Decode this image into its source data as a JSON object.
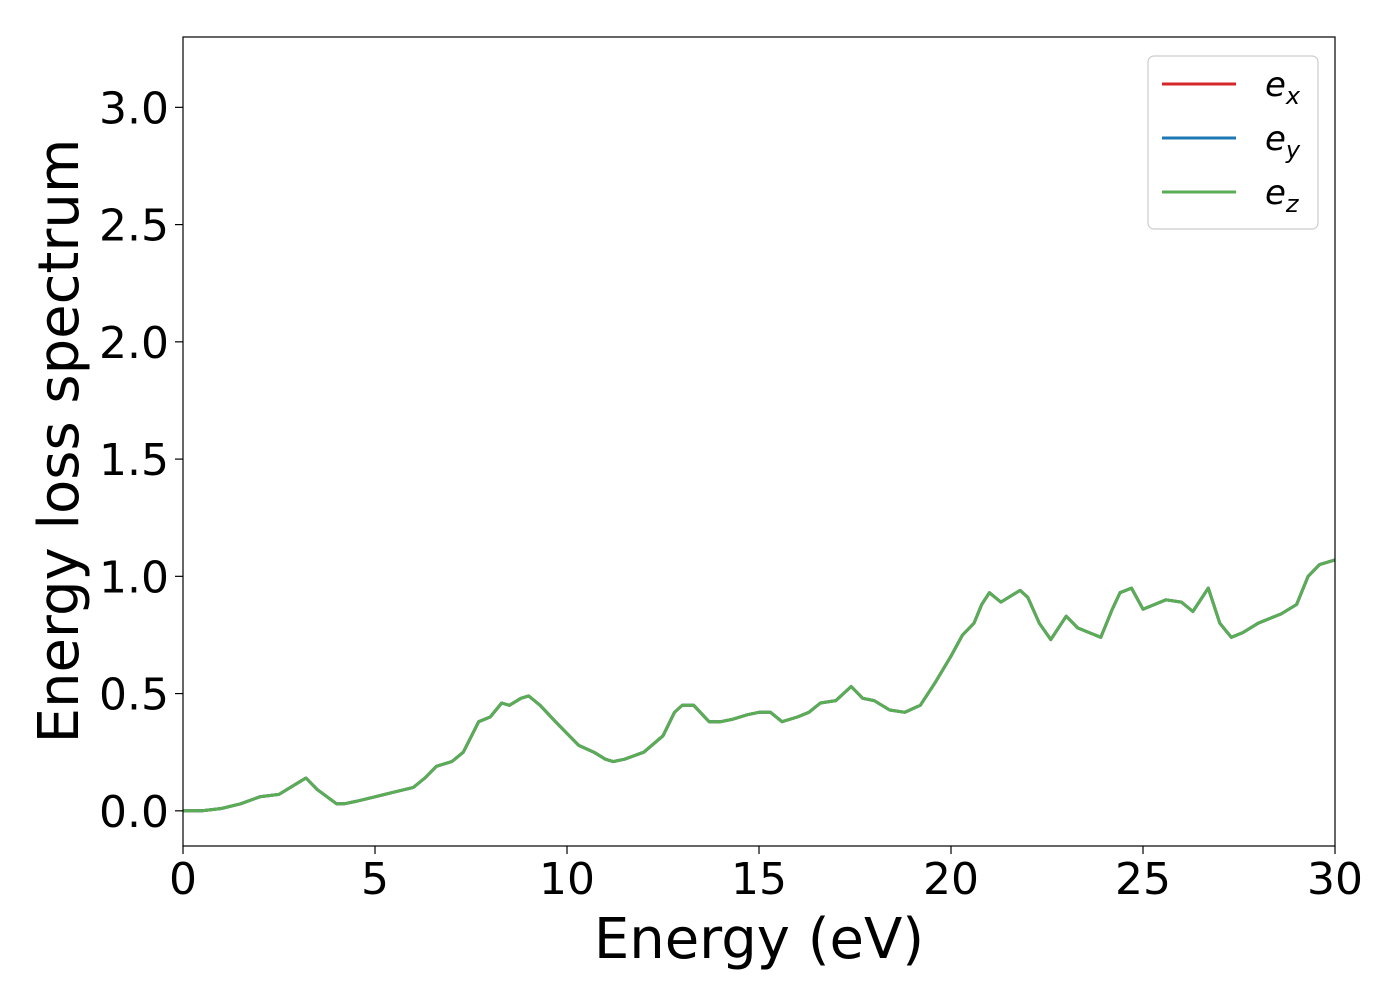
{
  "chart_data": {
    "type": "line",
    "title": "",
    "xlabel": "Energy (eV)",
    "ylabel": "Energy loss spectrum",
    "xlim": [
      0,
      30
    ],
    "ylim": [
      -0.15,
      3.3
    ],
    "xticks": [
      "0",
      "5",
      "10",
      "15",
      "20",
      "25",
      "30"
    ],
    "yticks": [
      "0.0",
      "0.5",
      "1.0",
      "1.5",
      "2.0",
      "2.5",
      "3.0"
    ],
    "grid": false,
    "legend_position": "top-right",
    "series": [
      {
        "name": "e",
        "subscript": "x",
        "color": "#d62728",
        "x": [
          0,
          0.5,
          1,
          1.5,
          2,
          2.5,
          3,
          3.2,
          3.5,
          4,
          4.2,
          4.5,
          5,
          5.5,
          6,
          6.3,
          6.6,
          7,
          7.3,
          7.7,
          8,
          8.3,
          8.5,
          8.8,
          9,
          9.3,
          9.7,
          10,
          10.3,
          10.7,
          11,
          11.2,
          11.5,
          12,
          12.5,
          12.8,
          13,
          13.3,
          13.7,
          14,
          14.3,
          14.7,
          15,
          15.3,
          15.6,
          16,
          16.3,
          16.6,
          17,
          17.4,
          17.7,
          18,
          18.4,
          18.8,
          19.2,
          19.6,
          20,
          20.3,
          20.6,
          20.8,
          21,
          21.3,
          21.5,
          21.8,
          22,
          22.3,
          22.6,
          23,
          23.3,
          23.6,
          23.9,
          24.2,
          24.4,
          24.7,
          25,
          25.3,
          25.6,
          26,
          26.3,
          26.7,
          27,
          27.3,
          27.6,
          28,
          28.3,
          28.6,
          29,
          29.3,
          29.6,
          30
        ],
        "y": [
          0,
          0,
          0.01,
          0.03,
          0.06,
          0.07,
          0.12,
          0.14,
          0.09,
          0.03,
          0.03,
          0.04,
          0.06,
          0.08,
          0.1,
          0.14,
          0.19,
          0.21,
          0.25,
          0.38,
          0.4,
          0.46,
          0.45,
          0.48,
          0.49,
          0.45,
          0.38,
          0.33,
          0.28,
          0.25,
          0.22,
          0.21,
          0.22,
          0.25,
          0.32,
          0.42,
          0.45,
          0.45,
          0.38,
          0.38,
          0.39,
          0.41,
          0.42,
          0.42,
          0.38,
          0.4,
          0.42,
          0.46,
          0.47,
          0.53,
          0.48,
          0.47,
          0.43,
          0.42,
          0.45,
          0.55,
          0.66,
          0.75,
          0.8,
          0.88,
          0.93,
          0.89,
          0.91,
          0.94,
          0.91,
          0.8,
          0.73,
          0.83,
          0.78,
          0.76,
          0.74,
          0.86,
          0.93,
          0.95,
          0.86,
          0.88,
          0.9,
          0.89,
          0.85,
          0.95,
          0.8,
          0.74,
          0.76,
          0.8,
          0.82,
          0.84,
          0.88,
          1.0,
          1.05,
          1.07
        ],
        "values_note": ""
      },
      {
        "name": "e",
        "subscript": "y",
        "color": "#1f77b4",
        "x": [
          0,
          0.5,
          1,
          1.5,
          2,
          2.5,
          3,
          3.2,
          3.5,
          4,
          4.2,
          4.5,
          5,
          5.5,
          6,
          6.3,
          6.6,
          7,
          7.3,
          7.7,
          8,
          8.3,
          8.5,
          8.8,
          9,
          9.3,
          9.7,
          10,
          10.3,
          10.7,
          11,
          11.2,
          11.5,
          12,
          12.5,
          12.8,
          13,
          13.3,
          13.7,
          14,
          14.3,
          14.7,
          15,
          15.3,
          15.6,
          16,
          16.3,
          16.6,
          17,
          17.4,
          17.7,
          18,
          18.4,
          18.8,
          19.2,
          19.6,
          20,
          20.3,
          20.6,
          20.8,
          21,
          21.3,
          21.5,
          21.8,
          22,
          22.3,
          22.6,
          23,
          23.3,
          23.6,
          23.9,
          24.2,
          24.4,
          24.7,
          25,
          25.3,
          25.6,
          26,
          26.3,
          26.7,
          27,
          27.3,
          27.6,
          28,
          28.3,
          28.6,
          29,
          29.3,
          29.6,
          30
        ],
        "y": [
          0,
          0,
          0.01,
          0.03,
          0.06,
          0.07,
          0.12,
          0.14,
          0.09,
          0.03,
          0.03,
          0.04,
          0.06,
          0.08,
          0.1,
          0.14,
          0.19,
          0.21,
          0.25,
          0.38,
          0.4,
          0.46,
          0.45,
          0.48,
          0.49,
          0.45,
          0.38,
          0.33,
          0.28,
          0.25,
          0.22,
          0.21,
          0.22,
          0.25,
          0.32,
          0.42,
          0.45,
          0.45,
          0.38,
          0.38,
          0.39,
          0.41,
          0.42,
          0.42,
          0.38,
          0.4,
          0.42,
          0.46,
          0.47,
          0.53,
          0.48,
          0.47,
          0.43,
          0.42,
          0.45,
          0.55,
          0.66,
          0.75,
          0.8,
          0.88,
          0.93,
          0.89,
          0.91,
          0.94,
          0.91,
          0.8,
          0.73,
          0.83,
          0.78,
          0.76,
          0.74,
          0.86,
          0.93,
          0.95,
          0.86,
          0.88,
          0.9,
          0.89,
          0.85,
          0.95,
          0.8,
          0.74,
          0.76,
          0.8,
          0.82,
          0.84,
          0.88,
          1.0,
          1.05,
          1.07
        ],
        "values_note": ""
      },
      {
        "name": "e",
        "subscript": "z",
        "color": "#5aad55",
        "x": [
          0,
          0.5,
          1,
          1.5,
          2,
          2.5,
          3,
          3.2,
          3.5,
          4,
          4.2,
          4.5,
          5,
          5.5,
          6,
          6.3,
          6.6,
          7,
          7.3,
          7.7,
          8,
          8.3,
          8.5,
          8.8,
          9,
          9.3,
          9.7,
          10,
          10.3,
          10.7,
          11,
          11.2,
          11.5,
          12,
          12.5,
          12.8,
          13,
          13.3,
          13.7,
          14,
          14.3,
          14.7,
          15,
          15.3,
          15.6,
          16,
          16.3,
          16.6,
          17,
          17.4,
          17.7,
          18,
          18.4,
          18.8,
          19.2,
          19.6,
          20,
          20.3,
          20.6,
          20.8,
          21,
          21.3,
          21.5,
          21.8,
          22,
          22.3,
          22.6,
          23,
          23.3,
          23.6,
          23.9,
          24.2,
          24.4,
          24.7,
          25,
          25.3,
          25.6,
          26,
          26.3,
          26.7,
          27,
          27.3,
          27.6,
          28,
          28.3,
          28.6,
          29,
          29.3,
          29.6,
          30
        ],
        "y": [
          0,
          0,
          0.01,
          0.03,
          0.06,
          0.07,
          0.12,
          0.14,
          0.09,
          0.03,
          0.03,
          0.04,
          0.06,
          0.08,
          0.1,
          0.14,
          0.19,
          0.21,
          0.25,
          0.38,
          0.4,
          0.46,
          0.45,
          0.48,
          0.49,
          0.45,
          0.38,
          0.33,
          0.28,
          0.25,
          0.22,
          0.21,
          0.22,
          0.25,
          0.32,
          0.42,
          0.45,
          0.45,
          0.38,
          0.38,
          0.39,
          0.41,
          0.42,
          0.42,
          0.38,
          0.4,
          0.42,
          0.46,
          0.47,
          0.53,
          0.48,
          0.47,
          0.43,
          0.42,
          0.45,
          0.55,
          0.66,
          0.75,
          0.8,
          0.88,
          0.93,
          0.89,
          0.91,
          0.94,
          0.91,
          0.8,
          0.73,
          0.83,
          0.78,
          0.76,
          0.74,
          0.86,
          0.93,
          0.95,
          0.86,
          0.88,
          0.9,
          0.89,
          0.85,
          0.95,
          0.8,
          0.74,
          0.76,
          0.8,
          0.82,
          0.84,
          0.88,
          1.0,
          1.05,
          1.07
        ],
        "values_note": ""
      }
    ]
  }
}
